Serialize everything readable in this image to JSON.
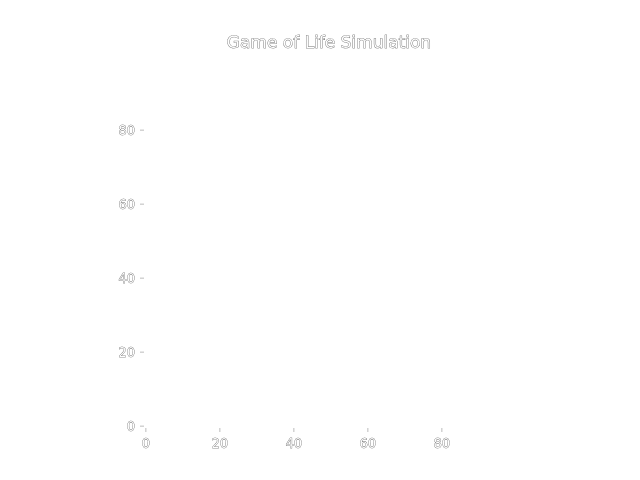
{
  "chart_data": {
    "type": "heatmap",
    "title": "Game of Life Simulation",
    "xlabel": "",
    "ylabel": "",
    "xlim": [
      -0.5,
      99.5
    ],
    "ylim": [
      99.5,
      -0.5
    ],
    "y_inverted": true,
    "x_ticks": [
      "0",
      "20",
      "40",
      "60",
      "80"
    ],
    "y_ticks": [
      "0",
      "20",
      "40",
      "60",
      "80"
    ],
    "grid": false,
    "colormap": "binary",
    "grid_size": [
      100,
      100
    ],
    "live_cells": []
  }
}
